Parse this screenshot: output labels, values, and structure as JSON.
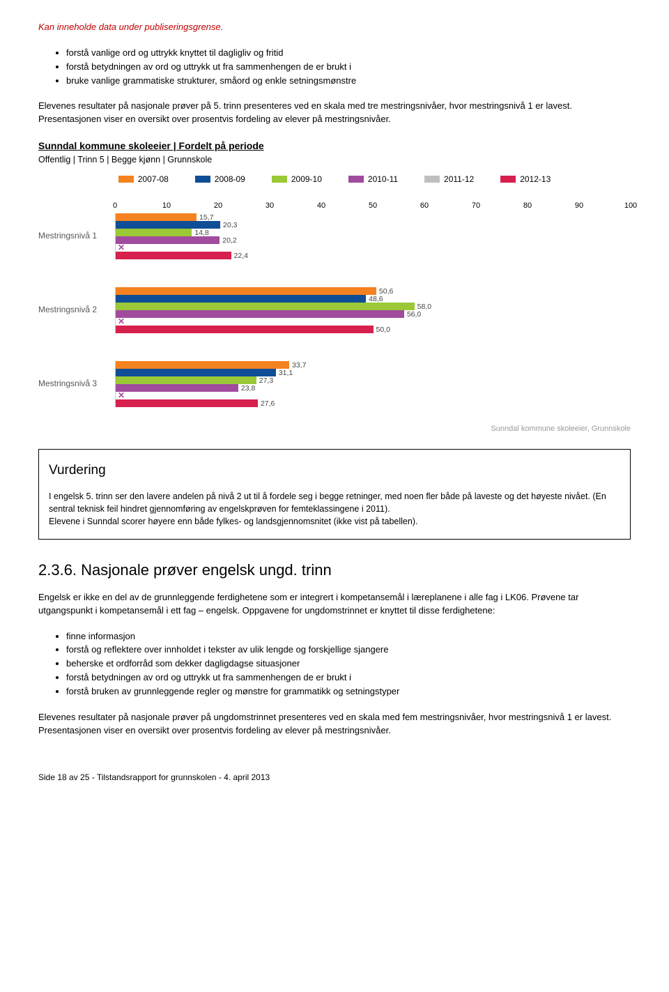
{
  "warning": {
    "text": "Kan inneholde data under publiseringsgrense.",
    "color": "#c00000"
  },
  "bullets_top": [
    "forstå vanlige ord og uttrykk knyttet til dagligliv og fritid",
    "forstå betydningen av ord og uttrykk ut fra sammenhengen de er brukt i",
    "bruke vanlige grammatiske strukturer, småord og enkle setningsmønstre"
  ],
  "para_results": "Elevenes resultater på nasjonale prøver på 5. trinn presenteres ved en skala med tre mestringsnivåer, hvor mestringsnivå 1 er lavest. Presentasjonen viser en oversikt over prosentvis fordeling av elever på mestringsnivåer.",
  "section_title": "Sunndal kommune skoleeier | Fordelt på periode",
  "section_sub": "Offentlig | Trinn 5 | Begge kjønn | Grunnskole",
  "chart": {
    "type": "bar-horizontal-grouped",
    "x_max": 100,
    "tick_step": 10,
    "series": [
      {
        "label": "2007-08",
        "color": "#f58220"
      },
      {
        "label": "2008-09",
        "color": "#0f4e96"
      },
      {
        "label": "2009-10",
        "color": "#9ac836"
      },
      {
        "label": "2010-11",
        "color": "#a14b9e"
      },
      {
        "label": "2011-12",
        "color": "#bfbfbf",
        "missing": true,
        "x_color": "#a14b9e"
      },
      {
        "label": "2012-13",
        "color": "#d6204e"
      }
    ],
    "groups": [
      {
        "label": "Mestringsnivå 1",
        "values": [
          15.7,
          20.3,
          14.8,
          20.2,
          null,
          22.4
        ]
      },
      {
        "label": "Mestringsnivå 2",
        "values": [
          50.6,
          48.6,
          58.0,
          56.0,
          null,
          50.0
        ]
      },
      {
        "label": "Mestringsnivå 3",
        "values": [
          33.7,
          31.1,
          27.3,
          23.8,
          null,
          27.6
        ]
      }
    ],
    "footer": "Sunndal kommune skoleeier, Grunnskole",
    "value_fontsize": 10.5,
    "label_fontsize": 12
  },
  "vurdering": {
    "heading": "Vurdering",
    "body": "I engelsk 5. trinn ser den lavere andelen på nivå 2 ut til å fordele seg i begge retninger, med noen fler både på laveste og det høyeste nivået. (En sentral teknisk feil hindret gjennomføring av engelskprøven for femteklassingene  i 2011).\nElevene i Sunndal scorer høyere enn både fylkes- og landsgjennomsnitet (ikke vist på tabellen)."
  },
  "sec236": {
    "heading": "2.3.6.  Nasjonale prøver engelsk ungd. trinn",
    "intro": "Engelsk er ikke en del av de grunnleggende ferdighetene som er integrert i kompetansemål i læreplanene i alle fag i LK06. Prøvene tar utgangspunkt i kompetansemål i ett fag – engelsk. Oppgavene for ungdomstrinnet er knyttet til disse ferdighetene:",
    "bullets": [
      "finne informasjon",
      "forstå og reflektere over innholdet i tekster av ulik lengde og forskjellige sjangere",
      "beherske et ordforråd som dekker dagligdagse situasjoner",
      "forstå betydningen av ord og uttrykk ut fra sammenhengen de er brukt i",
      "forstå bruken av grunnleggende regler og mønstre for grammatikk og setningstyper"
    ],
    "outro": "Elevenes resultater på nasjonale prøver på ungdomstrinnet presenteres ved en skala med fem mestringsnivåer, hvor mestringsnivå 1 er lavest. Presentasjonen viser en oversikt over prosentvis fordeling av elever på mestringsnivåer."
  },
  "footer": "Side 18 av 25 - Tilstandsrapport for grunnskolen - 4. april 2013"
}
